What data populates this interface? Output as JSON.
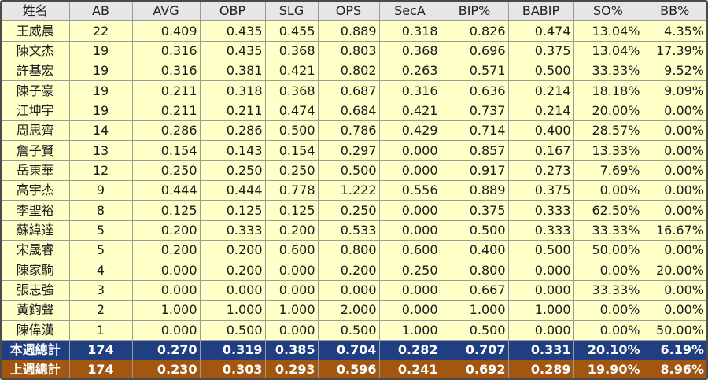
{
  "table": {
    "headers": [
      "姓名",
      "AB",
      "AVG",
      "OBP",
      "SLG",
      "OPS",
      "SecA",
      "BIP%",
      "BABIP",
      "SO%",
      "BB%"
    ],
    "rows": [
      [
        "王威晨",
        "22",
        "0.409",
        "0.435",
        "0.455",
        "0.889",
        "0.318",
        "0.826",
        "0.474",
        "13.04%",
        "4.35%"
      ],
      [
        "陳文杰",
        "19",
        "0.316",
        "0.435",
        "0.368",
        "0.803",
        "0.368",
        "0.696",
        "0.375",
        "13.04%",
        "17.39%"
      ],
      [
        "許基宏",
        "19",
        "0.316",
        "0.381",
        "0.421",
        "0.802",
        "0.263",
        "0.571",
        "0.500",
        "33.33%",
        "9.52%"
      ],
      [
        "陳子豪",
        "19",
        "0.211",
        "0.318",
        "0.368",
        "0.687",
        "0.316",
        "0.636",
        "0.214",
        "18.18%",
        "9.09%"
      ],
      [
        "江坤宇",
        "19",
        "0.211",
        "0.211",
        "0.474",
        "0.684",
        "0.421",
        "0.737",
        "0.214",
        "20.00%",
        "0.00%"
      ],
      [
        "周思齊",
        "14",
        "0.286",
        "0.286",
        "0.500",
        "0.786",
        "0.429",
        "0.714",
        "0.400",
        "28.57%",
        "0.00%"
      ],
      [
        "詹子賢",
        "13",
        "0.154",
        "0.143",
        "0.154",
        "0.297",
        "0.000",
        "0.857",
        "0.167",
        "13.33%",
        "0.00%"
      ],
      [
        "岳東華",
        "12",
        "0.250",
        "0.250",
        "0.250",
        "0.500",
        "0.000",
        "0.917",
        "0.273",
        "7.69%",
        "0.00%"
      ],
      [
        "高宇杰",
        "9",
        "0.444",
        "0.444",
        "0.778",
        "1.222",
        "0.556",
        "0.889",
        "0.375",
        "0.00%",
        "0.00%"
      ],
      [
        "李聖裕",
        "8",
        "0.125",
        "0.125",
        "0.125",
        "0.250",
        "0.000",
        "0.375",
        "0.333",
        "62.50%",
        "0.00%"
      ],
      [
        "蘇緯達",
        "5",
        "0.200",
        "0.333",
        "0.200",
        "0.533",
        "0.000",
        "0.500",
        "0.333",
        "33.33%",
        "16.67%"
      ],
      [
        "宋晟睿",
        "5",
        "0.200",
        "0.200",
        "0.600",
        "0.800",
        "0.600",
        "0.400",
        "0.500",
        "50.00%",
        "0.00%"
      ],
      [
        "陳家駒",
        "4",
        "0.000",
        "0.200",
        "0.000",
        "0.200",
        "0.250",
        "0.800",
        "0.000",
        "0.00%",
        "20.00%"
      ],
      [
        "張志強",
        "3",
        "0.000",
        "0.000",
        "0.000",
        "0.000",
        "0.000",
        "0.667",
        "0.000",
        "33.33%",
        "0.00%"
      ],
      [
        "黃鈞聲",
        "2",
        "1.000",
        "1.000",
        "1.000",
        "2.000",
        "0.000",
        "1.000",
        "1.000",
        "0.00%",
        "0.00%"
      ],
      [
        "陳偉漢",
        "1",
        "0.000",
        "0.500",
        "0.000",
        "0.500",
        "1.000",
        "0.500",
        "0.000",
        "0.00%",
        "50.00%"
      ]
    ],
    "totals": [
      {
        "kind": "this-week",
        "color": "#1f3f82",
        "cells": [
          "本週總計",
          "174",
          "0.270",
          "0.319",
          "0.385",
          "0.704",
          "0.282",
          "0.707",
          "0.331",
          "20.10%",
          "6.19%"
        ]
      },
      {
        "kind": "last-week",
        "color": "#a3560f",
        "cells": [
          "上週總計",
          "174",
          "0.230",
          "0.303",
          "0.293",
          "0.596",
          "0.241",
          "0.692",
          "0.289",
          "19.90%",
          "8.96%"
        ]
      }
    ]
  },
  "colors": {
    "row_background": "#ffffc8",
    "header_background": "#e6e6e6",
    "this_week_total": "#1f3f82",
    "last_week_total": "#a3560f"
  }
}
